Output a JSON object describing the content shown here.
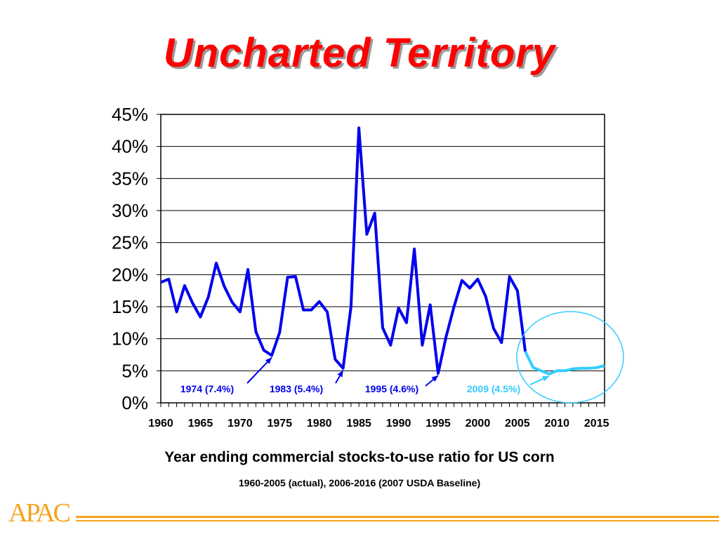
{
  "slide": {
    "title": "Uncharted Territory",
    "caption_main": "Year ending commercial stocks-to-use ratio for US corn",
    "caption_sub": "1960-2005 (actual), 2006-2016 (2007 USDA Baseline)",
    "logo_text": "APAC"
  },
  "colors": {
    "title": "#ff0000",
    "actual_series": "#0000ee",
    "baseline_series": "#33ccff",
    "logo": "#f5a31a"
  },
  "chart_data": {
    "type": "line",
    "title": "",
    "xlabel": "",
    "ylabel": "",
    "xlim": [
      1960,
      2016
    ],
    "ylim": [
      0,
      45
    ],
    "y_ticks": [
      0,
      5,
      10,
      15,
      20,
      25,
      30,
      35,
      40,
      45
    ],
    "y_tick_labels": [
      "0%",
      "5%",
      "10%",
      "15%",
      "20%",
      "25%",
      "30%",
      "35%",
      "40%",
      "45%"
    ],
    "x_tick_labels": [
      "1960",
      "1965",
      "1970",
      "1975",
      "1980",
      "1985",
      "1990",
      "1995",
      "2000",
      "2005",
      "2010",
      "2015"
    ],
    "x_tick_values": [
      1960,
      1965,
      1970,
      1975,
      1980,
      1985,
      1990,
      1995,
      2000,
      2005,
      2010,
      2015
    ],
    "grid": "horizontal",
    "series": [
      {
        "role": "actual",
        "x": [
          1960,
          1961,
          1962,
          1963,
          1964,
          1965,
          1966,
          1967,
          1968,
          1969,
          1970,
          1971,
          1972,
          1973,
          1974,
          1975,
          1976,
          1977,
          1978,
          1979,
          1980,
          1981,
          1982,
          1983,
          1984,
          1985,
          1986,
          1987,
          1988,
          1989,
          1990,
          1991,
          1992,
          1993,
          1994,
          1995,
          1996,
          1997,
          1998,
          1999,
          2000,
          2001,
          2002,
          2003,
          2004,
          2005,
          2006
        ],
        "values": [
          18.8,
          19.3,
          14.2,
          18.3,
          15.6,
          13.4,
          16.5,
          21.8,
          18.2,
          15.7,
          14.2,
          20.8,
          11.1,
          8.2,
          7.4,
          11.0,
          19.6,
          19.7,
          14.5,
          14.5,
          15.8,
          14.2,
          6.8,
          5.4,
          15.0,
          42.9,
          26.3,
          29.6,
          11.7,
          9.0,
          14.8,
          12.5,
          24.0,
          9.0,
          15.3,
          4.6,
          10.3,
          15.0,
          19.1,
          17.9,
          19.3,
          16.6,
          11.6,
          9.4,
          19.7,
          17.5,
          8.0
        ]
      },
      {
        "role": "baseline",
        "x": [
          2006,
          2007,
          2008,
          2009,
          2010,
          2011,
          2012,
          2013,
          2014,
          2015,
          2016
        ],
        "values": [
          8.0,
          5.5,
          5.0,
          4.5,
          5.0,
          5.0,
          5.3,
          5.4,
          5.4,
          5.5,
          5.8
        ]
      }
    ],
    "annotations": [
      {
        "text": "1974 (7.4%)",
        "year": 1974,
        "value": 7.4,
        "color": "#0000ee"
      },
      {
        "text": "1983 (5.4%)",
        "year": 1983,
        "value": 5.4,
        "color": "#0000ee"
      },
      {
        "text": "1995 (4.6%)",
        "year": 1995,
        "value": 4.6,
        "color": "#0000ee"
      },
      {
        "text": "2009 (4.5%)",
        "year": 2009,
        "value": 4.5,
        "color": "#33ccff"
      }
    ]
  }
}
